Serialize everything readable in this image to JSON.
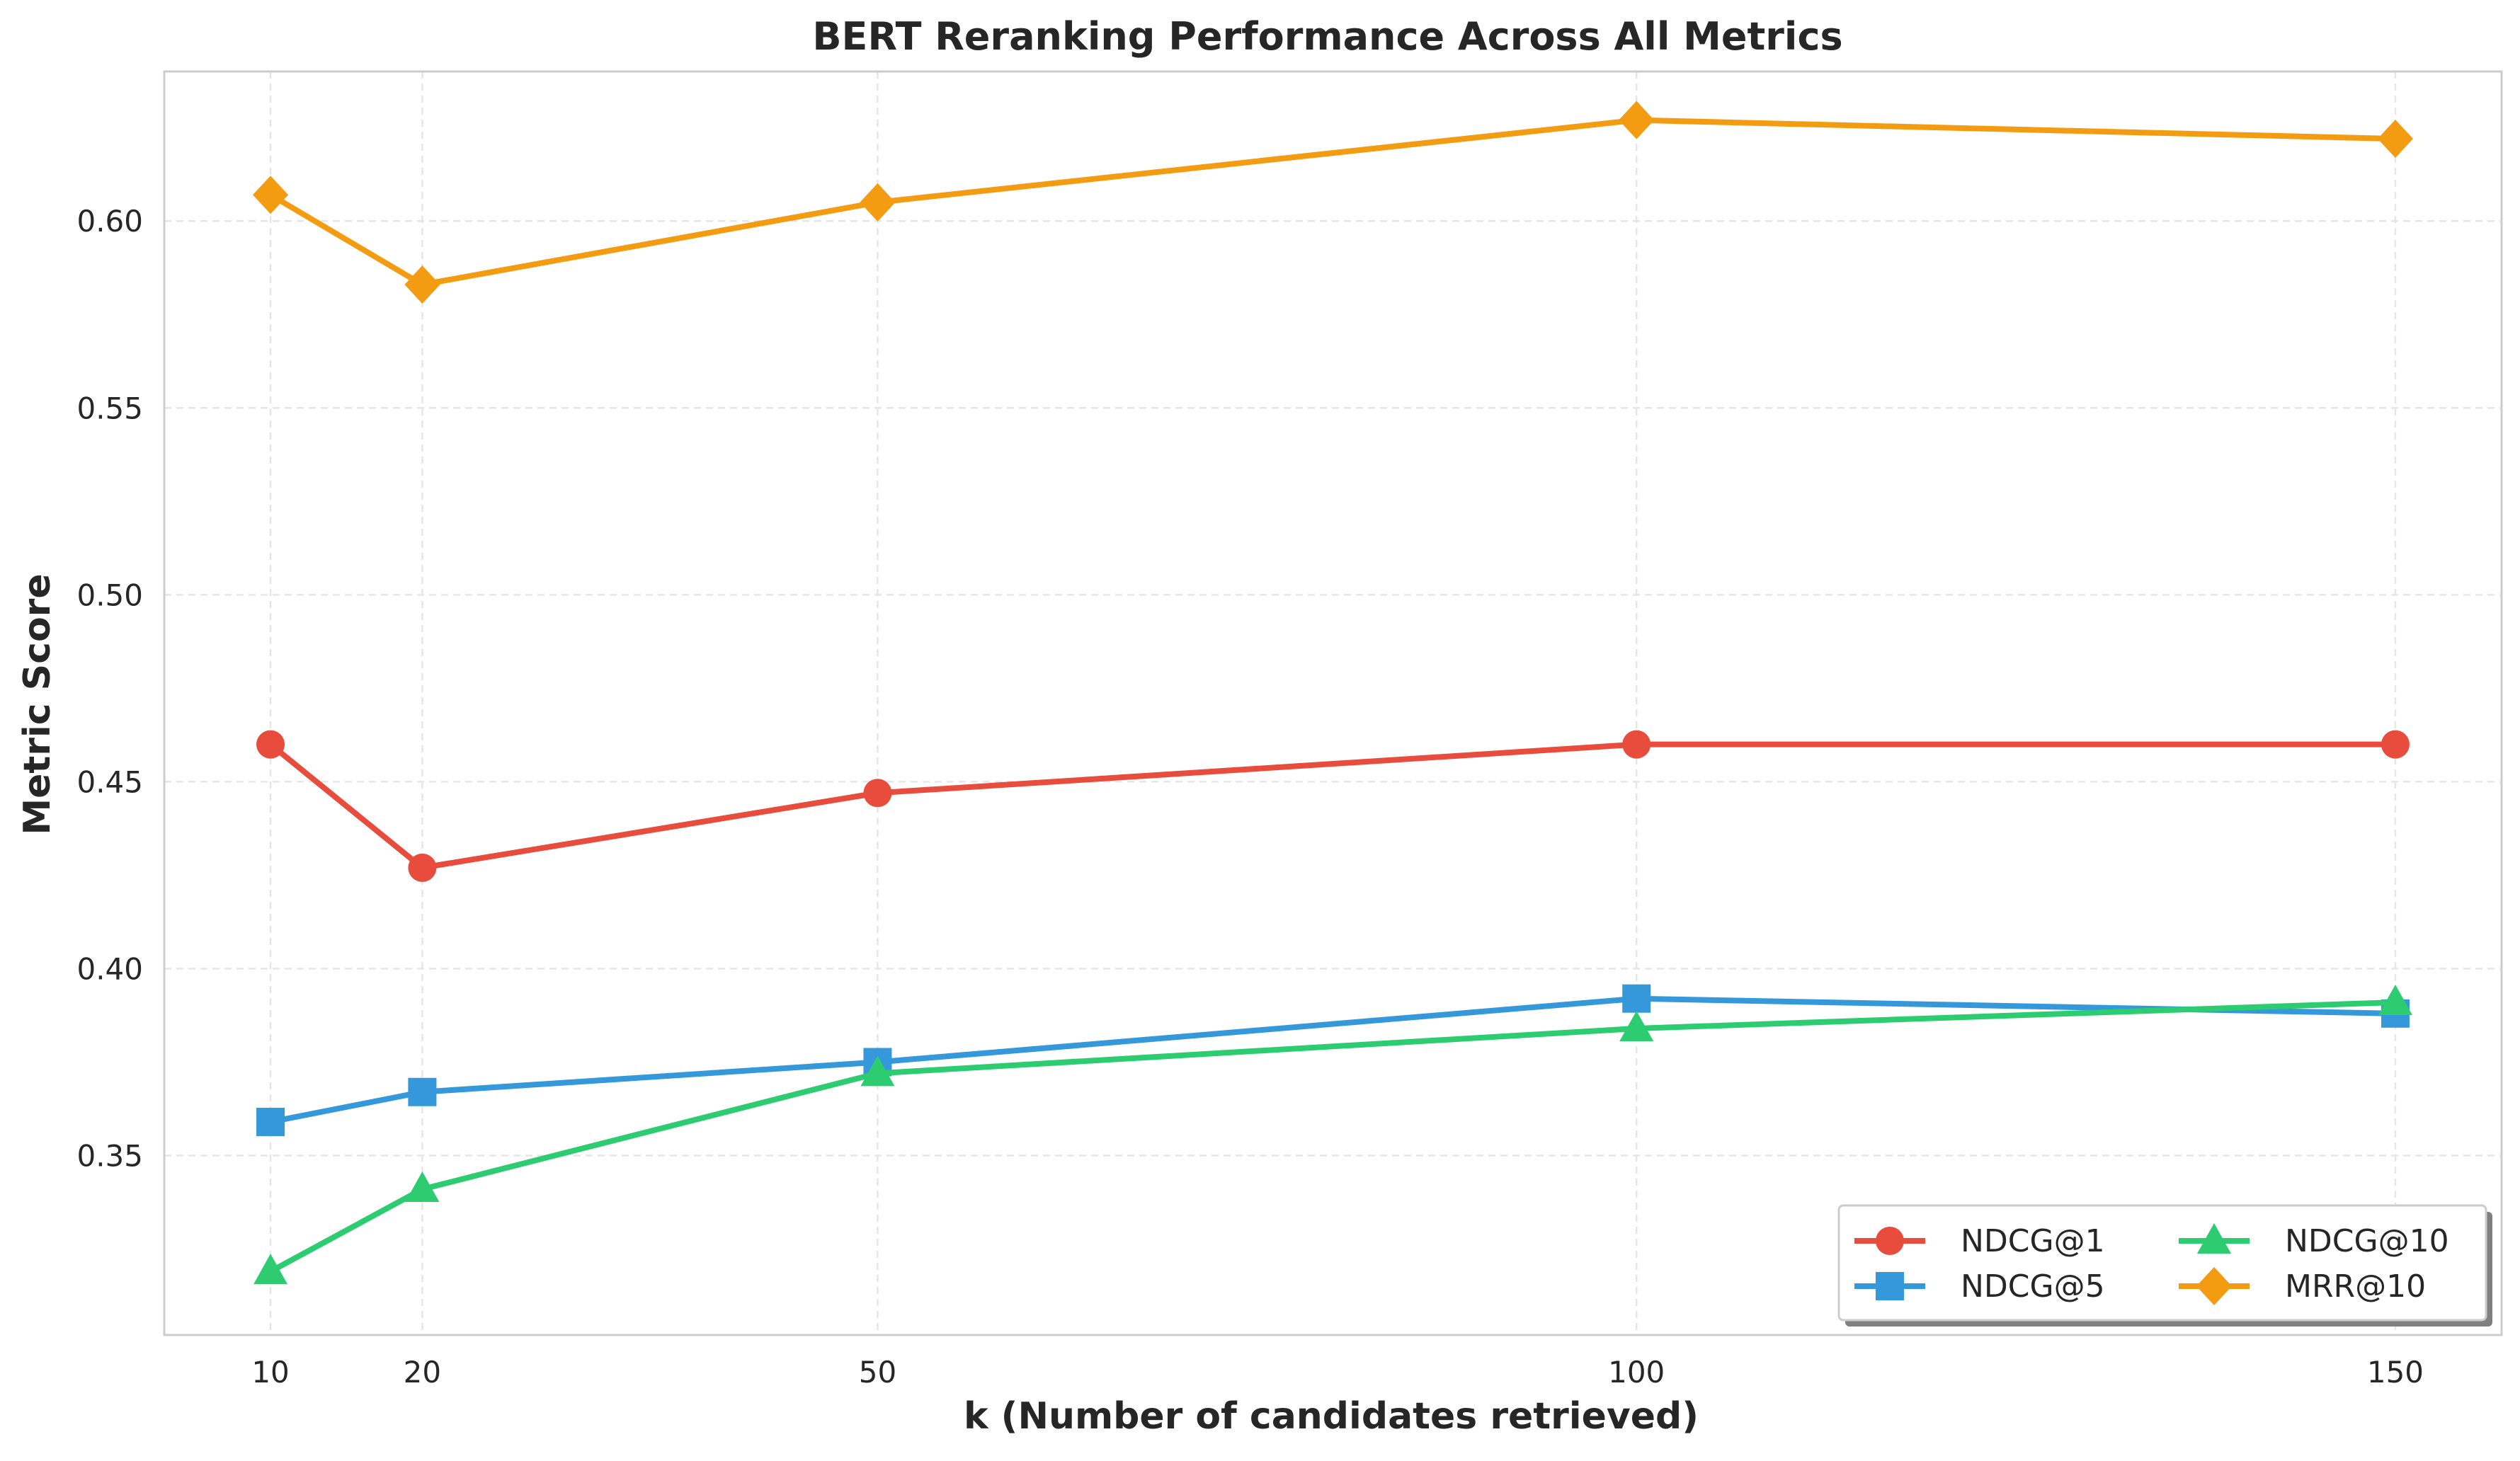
{
  "chart_data": {
    "type": "line",
    "title": "BERT Reranking Performance Across All Metrics",
    "xlabel": "k (Number of candidates retrieved)",
    "ylabel": "Metric Score",
    "x": [
      10,
      20,
      50,
      100,
      150
    ],
    "xticks": [
      "10",
      "20",
      "50",
      "100",
      "150"
    ],
    "yticks": [
      "0.35",
      "0.40",
      "0.45",
      "0.50",
      "0.55",
      "0.60"
    ],
    "ytick_values": [
      0.35,
      0.4,
      0.45,
      0.5,
      0.55,
      0.6
    ],
    "xlim": [
      3,
      157
    ],
    "ylim": [
      0.302,
      0.64
    ],
    "grid": true,
    "legend_position": "bottom-right",
    "legend_columns": 2,
    "series": [
      {
        "name": "NDCG@1",
        "marker": "circle",
        "color": "#e74c3c",
        "values": [
          0.46,
          0.427,
          0.447,
          0.46,
          0.46
        ]
      },
      {
        "name": "NDCG@5",
        "marker": "square",
        "color": "#3498db",
        "values": [
          0.359,
          0.367,
          0.375,
          0.392,
          0.388
        ]
      },
      {
        "name": "NDCG@10",
        "marker": "triangle",
        "color": "#2ecc71",
        "values": [
          0.319,
          0.341,
          0.372,
          0.384,
          0.391
        ]
      },
      {
        "name": "MRR@10",
        "marker": "diamond",
        "color": "#f39c12",
        "values": [
          0.607,
          0.583,
          0.605,
          0.627,
          0.622
        ]
      }
    ]
  }
}
